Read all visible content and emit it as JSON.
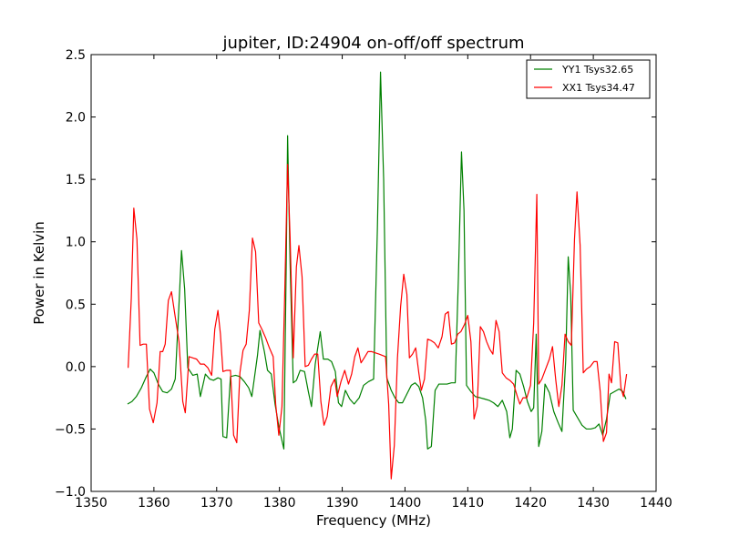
{
  "chart_data": {
    "type": "line",
    "title": "jupiter, ID:24904 on-off/off spectrum",
    "xlabel": "Frequency (MHz)",
    "ylabel": "Power in Kelvin",
    "xlim": [
      1350,
      1440
    ],
    "ylim": [
      -1.0,
      2.5
    ],
    "xticks": [
      1350,
      1360,
      1370,
      1380,
      1390,
      1400,
      1410,
      1420,
      1430,
      1440
    ],
    "yticks": [
      -1.0,
      -0.5,
      0.0,
      0.5,
      1.0,
      1.5,
      2.0,
      2.5
    ],
    "xtick_labels": [
      "1350",
      "1360",
      "1370",
      "1380",
      "1390",
      "1400",
      "1410",
      "1420",
      "1430",
      "1440"
    ],
    "ytick_labels": [
      "−1.0",
      "−0.5",
      "0.0",
      "0.5",
      "1.0",
      "1.5",
      "2.0",
      "2.5"
    ],
    "grid": false,
    "legend_position": "top-right",
    "series": [
      {
        "name": "YY1 Tsys32.65",
        "color": "#008000",
        "points": [
          [
            1355.8,
            -0.3
          ],
          [
            1356.5,
            -0.28
          ],
          [
            1357.2,
            -0.24
          ],
          [
            1358.0,
            -0.17
          ],
          [
            1358.7,
            -0.09
          ],
          [
            1359.4,
            -0.02
          ],
          [
            1360.0,
            -0.05
          ],
          [
            1360.7,
            -0.14
          ],
          [
            1361.4,
            -0.2
          ],
          [
            1362.1,
            -0.21
          ],
          [
            1362.8,
            -0.18
          ],
          [
            1363.4,
            -0.1
          ],
          [
            1364.0,
            0.5
          ],
          [
            1364.4,
            0.93
          ],
          [
            1364.9,
            0.62
          ],
          [
            1365.4,
            -0.01
          ],
          [
            1366.2,
            -0.07
          ],
          [
            1366.9,
            -0.06
          ],
          [
            1367.4,
            -0.24
          ],
          [
            1368.2,
            -0.06
          ],
          [
            1368.9,
            -0.1
          ],
          [
            1369.5,
            -0.11
          ],
          [
            1370.2,
            -0.09
          ],
          [
            1370.7,
            -0.1
          ],
          [
            1371.0,
            -0.56
          ],
          [
            1371.6,
            -0.57
          ],
          [
            1372.2,
            -0.08
          ],
          [
            1373.0,
            -0.07
          ],
          [
            1373.7,
            -0.08
          ],
          [
            1374.4,
            -0.12
          ],
          [
            1375.1,
            -0.17
          ],
          [
            1375.6,
            -0.24
          ],
          [
            1376.5,
            0.09
          ],
          [
            1376.9,
            0.29
          ],
          [
            1377.6,
            0.12
          ],
          [
            1378.1,
            -0.03
          ],
          [
            1378.7,
            -0.06
          ],
          [
            1379.3,
            -0.3
          ],
          [
            1379.9,
            -0.48
          ],
          [
            1380.7,
            -0.66
          ],
          [
            1381.1,
            0.9
          ],
          [
            1381.3,
            1.85
          ],
          [
            1381.7,
            0.82
          ],
          [
            1382.2,
            -0.13
          ],
          [
            1382.7,
            -0.11
          ],
          [
            1383.3,
            -0.03
          ],
          [
            1384.0,
            -0.04
          ],
          [
            1384.6,
            -0.2
          ],
          [
            1385.1,
            -0.32
          ],
          [
            1385.7,
            0.02
          ],
          [
            1386.5,
            0.28
          ],
          [
            1387.0,
            0.06
          ],
          [
            1387.7,
            0.06
          ],
          [
            1388.3,
            0.04
          ],
          [
            1388.9,
            -0.04
          ],
          [
            1389.4,
            -0.29
          ],
          [
            1389.9,
            -0.32
          ],
          [
            1390.5,
            -0.19
          ],
          [
            1391.2,
            -0.26
          ],
          [
            1391.9,
            -0.3
          ],
          [
            1392.7,
            -0.25
          ],
          [
            1393.4,
            -0.15
          ],
          [
            1394.2,
            -0.12
          ],
          [
            1395.0,
            -0.1
          ],
          [
            1395.6,
            1.1
          ],
          [
            1396.1,
            2.36
          ],
          [
            1396.6,
            1.5
          ],
          [
            1397.1,
            -0.09
          ],
          [
            1397.8,
            -0.19
          ],
          [
            1398.4,
            -0.25
          ],
          [
            1399.0,
            -0.29
          ],
          [
            1399.6,
            -0.29
          ],
          [
            1400.3,
            -0.22
          ],
          [
            1401.0,
            -0.15
          ],
          [
            1401.6,
            -0.13
          ],
          [
            1402.2,
            -0.16
          ],
          [
            1402.8,
            -0.25
          ],
          [
            1403.3,
            -0.43
          ],
          [
            1403.6,
            -0.66
          ],
          [
            1404.2,
            -0.64
          ],
          [
            1404.8,
            -0.19
          ],
          [
            1405.4,
            -0.14
          ],
          [
            1406.0,
            -0.14
          ],
          [
            1406.7,
            -0.14
          ],
          [
            1407.4,
            -0.13
          ],
          [
            1408.0,
            -0.13
          ],
          [
            1408.5,
            0.7
          ],
          [
            1409.0,
            1.72
          ],
          [
            1409.4,
            1.25
          ],
          [
            1409.8,
            -0.15
          ],
          [
            1410.5,
            -0.2
          ],
          [
            1411.2,
            -0.24
          ],
          [
            1412.0,
            -0.25
          ],
          [
            1412.7,
            -0.26
          ],
          [
            1413.4,
            -0.27
          ],
          [
            1414.1,
            -0.29
          ],
          [
            1414.8,
            -0.32
          ],
          [
            1415.5,
            -0.27
          ],
          [
            1416.2,
            -0.36
          ],
          [
            1416.7,
            -0.57
          ],
          [
            1417.1,
            -0.5
          ],
          [
            1417.7,
            -0.03
          ],
          [
            1418.3,
            -0.06
          ],
          [
            1418.9,
            -0.16
          ],
          [
            1419.5,
            -0.28
          ],
          [
            1420.1,
            -0.36
          ],
          [
            1420.5,
            -0.33
          ],
          [
            1420.9,
            0.26
          ],
          [
            1421.3,
            -0.64
          ],
          [
            1421.8,
            -0.52
          ],
          [
            1422.3,
            -0.14
          ],
          [
            1423.0,
            -0.21
          ],
          [
            1423.7,
            -0.36
          ],
          [
            1424.4,
            -0.45
          ],
          [
            1425.0,
            -0.52
          ],
          [
            1425.6,
            0.05
          ],
          [
            1426.0,
            0.88
          ],
          [
            1426.4,
            0.57
          ],
          [
            1426.8,
            -0.35
          ],
          [
            1427.5,
            -0.41
          ],
          [
            1428.2,
            -0.47
          ],
          [
            1428.9,
            -0.5
          ],
          [
            1429.6,
            -0.5
          ],
          [
            1430.3,
            -0.49
          ],
          [
            1430.9,
            -0.46
          ],
          [
            1431.5,
            -0.55
          ],
          [
            1432.1,
            -0.42
          ],
          [
            1432.7,
            -0.22
          ],
          [
            1433.4,
            -0.2
          ],
          [
            1434.1,
            -0.18
          ],
          [
            1434.7,
            -0.2
          ],
          [
            1435.2,
            -0.26
          ]
        ]
      },
      {
        "name": "XX1 Tsys34.47",
        "color": "#ff0000",
        "points": [
          [
            1355.9,
            -0.01
          ],
          [
            1356.4,
            0.55
          ],
          [
            1356.8,
            1.27
          ],
          [
            1357.3,
            1.02
          ],
          [
            1357.8,
            0.17
          ],
          [
            1358.3,
            0.18
          ],
          [
            1358.8,
            0.18
          ],
          [
            1359.3,
            -0.34
          ],
          [
            1359.9,
            -0.45
          ],
          [
            1360.5,
            -0.29
          ],
          [
            1361.0,
            0.12
          ],
          [
            1361.4,
            0.12
          ],
          [
            1361.8,
            0.18
          ],
          [
            1362.3,
            0.53
          ],
          [
            1362.8,
            0.6
          ],
          [
            1363.3,
            0.43
          ],
          [
            1364.0,
            0.2
          ],
          [
            1364.6,
            -0.28
          ],
          [
            1365.0,
            -0.37
          ],
          [
            1365.6,
            0.08
          ],
          [
            1366.2,
            0.07
          ],
          [
            1366.8,
            0.06
          ],
          [
            1367.4,
            0.02
          ],
          [
            1368.0,
            0.02
          ],
          [
            1368.6,
            -0.01
          ],
          [
            1369.2,
            -0.07
          ],
          [
            1369.7,
            0.3
          ],
          [
            1370.2,
            0.45
          ],
          [
            1370.6,
            0.26
          ],
          [
            1371.0,
            -0.04
          ],
          [
            1371.6,
            -0.03
          ],
          [
            1372.2,
            -0.03
          ],
          [
            1372.7,
            -0.55
          ],
          [
            1373.2,
            -0.61
          ],
          [
            1373.7,
            -0.05
          ],
          [
            1374.2,
            0.13
          ],
          [
            1374.7,
            0.18
          ],
          [
            1375.2,
            0.45
          ],
          [
            1375.7,
            1.03
          ],
          [
            1376.2,
            0.92
          ],
          [
            1376.7,
            0.35
          ],
          [
            1377.2,
            0.3
          ],
          [
            1377.8,
            0.23
          ],
          [
            1378.4,
            0.15
          ],
          [
            1379.0,
            0.08
          ],
          [
            1379.4,
            -0.3
          ],
          [
            1379.9,
            -0.55
          ],
          [
            1380.4,
            -0.32
          ],
          [
            1380.8,
            0.5
          ],
          [
            1381.3,
            1.62
          ],
          [
            1381.7,
            1.03
          ],
          [
            1382.2,
            0.07
          ],
          [
            1382.7,
            0.8
          ],
          [
            1383.1,
            0.97
          ],
          [
            1383.6,
            0.72
          ],
          [
            1384.1,
            0.0
          ],
          [
            1384.6,
            0.01
          ],
          [
            1385.1,
            0.06
          ],
          [
            1385.6,
            0.1
          ],
          [
            1386.1,
            0.1
          ],
          [
            1386.6,
            -0.28
          ],
          [
            1387.1,
            -0.47
          ],
          [
            1387.6,
            -0.4
          ],
          [
            1388.2,
            -0.16
          ],
          [
            1388.8,
            -0.1
          ],
          [
            1389.2,
            -0.24
          ],
          [
            1389.8,
            -0.12
          ],
          [
            1390.4,
            -0.03
          ],
          [
            1391.0,
            -0.14
          ],
          [
            1391.5,
            -0.06
          ],
          [
            1392.0,
            0.08
          ],
          [
            1392.5,
            0.15
          ],
          [
            1393.0,
            0.03
          ],
          [
            1393.5,
            0.07
          ],
          [
            1394.1,
            0.12
          ],
          [
            1394.7,
            0.12
          ],
          [
            1395.3,
            0.11
          ],
          [
            1395.9,
            0.1
          ],
          [
            1396.4,
            0.09
          ],
          [
            1396.9,
            0.08
          ],
          [
            1397.4,
            -0.3
          ],
          [
            1397.8,
            -0.9
          ],
          [
            1398.3,
            -0.63
          ],
          [
            1398.8,
            0.07
          ],
          [
            1399.3,
            0.48
          ],
          [
            1399.8,
            0.74
          ],
          [
            1400.3,
            0.58
          ],
          [
            1400.7,
            0.07
          ],
          [
            1401.2,
            0.1
          ],
          [
            1401.7,
            0.15
          ],
          [
            1402.2,
            -0.05
          ],
          [
            1402.6,
            -0.19
          ],
          [
            1403.1,
            -0.1
          ],
          [
            1403.6,
            0.22
          ],
          [
            1404.1,
            0.21
          ],
          [
            1404.7,
            0.19
          ],
          [
            1405.3,
            0.15
          ],
          [
            1405.9,
            0.24
          ],
          [
            1406.4,
            0.42
          ],
          [
            1406.9,
            0.44
          ],
          [
            1407.4,
            0.18
          ],
          [
            1407.9,
            0.19
          ],
          [
            1408.4,
            0.26
          ],
          [
            1408.9,
            0.28
          ],
          [
            1409.5,
            0.34
          ],
          [
            1410.0,
            0.41
          ],
          [
            1410.5,
            0.2
          ],
          [
            1411.0,
            -0.42
          ],
          [
            1411.5,
            -0.32
          ],
          [
            1412.0,
            0.32
          ],
          [
            1412.5,
            0.28
          ],
          [
            1413.0,
            0.2
          ],
          [
            1413.5,
            0.14
          ],
          [
            1414.0,
            0.1
          ],
          [
            1414.5,
            0.37
          ],
          [
            1415.0,
            0.28
          ],
          [
            1415.5,
            -0.05
          ],
          [
            1416.1,
            -0.09
          ],
          [
            1416.7,
            -0.11
          ],
          [
            1417.3,
            -0.14
          ],
          [
            1417.9,
            -0.24
          ],
          [
            1418.3,
            -0.3
          ],
          [
            1418.8,
            -0.25
          ],
          [
            1419.4,
            -0.25
          ],
          [
            1420.0,
            -0.15
          ],
          [
            1420.5,
            0.35
          ],
          [
            1421.0,
            1.38
          ],
          [
            1421.3,
            -0.14
          ],
          [
            1421.8,
            -0.1
          ],
          [
            1422.4,
            -0.02
          ],
          [
            1423.0,
            0.06
          ],
          [
            1423.5,
            0.16
          ],
          [
            1424.0,
            -0.1
          ],
          [
            1424.5,
            -0.32
          ],
          [
            1425.0,
            -0.15
          ],
          [
            1425.5,
            0.26
          ],
          [
            1426.0,
            0.2
          ],
          [
            1426.5,
            0.17
          ],
          [
            1427.0,
            1.02
          ],
          [
            1427.4,
            1.4
          ],
          [
            1427.9,
            0.97
          ],
          [
            1428.4,
            -0.05
          ],
          [
            1428.9,
            -0.02
          ],
          [
            1429.5,
            0.0
          ],
          [
            1430.1,
            0.04
          ],
          [
            1430.6,
            0.04
          ],
          [
            1431.1,
            -0.2
          ],
          [
            1431.6,
            -0.6
          ],
          [
            1432.1,
            -0.53
          ],
          [
            1432.5,
            -0.06
          ],
          [
            1432.9,
            -0.13
          ],
          [
            1433.4,
            0.2
          ],
          [
            1433.9,
            0.19
          ],
          [
            1434.4,
            -0.17
          ],
          [
            1434.8,
            -0.24
          ],
          [
            1435.3,
            -0.06
          ]
        ]
      }
    ]
  }
}
